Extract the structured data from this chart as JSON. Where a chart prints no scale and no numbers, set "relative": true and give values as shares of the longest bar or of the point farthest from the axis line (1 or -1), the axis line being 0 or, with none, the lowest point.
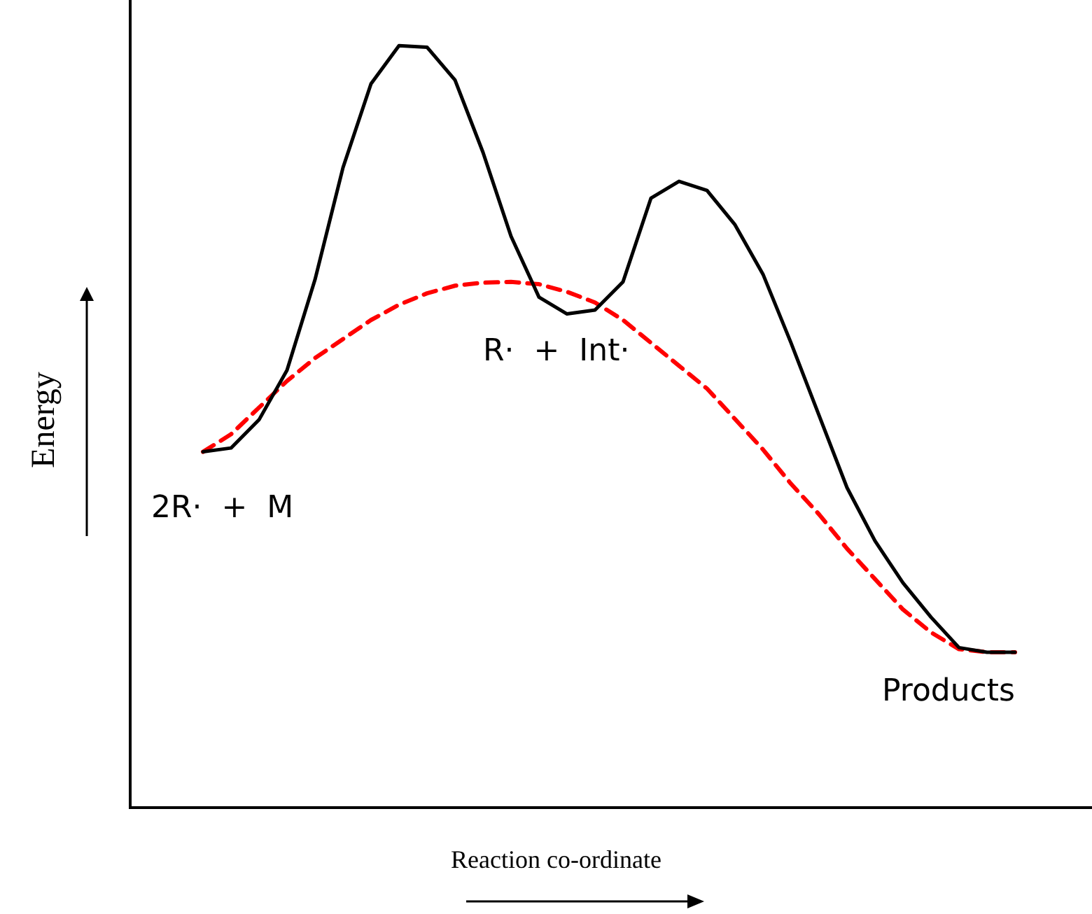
{
  "chart_data": {
    "type": "line",
    "relative": true,
    "xlabel": "Reaction co-ordinate",
    "ylabel": "Energy",
    "marker": "none",
    "categories": [
      null,
      null,
      null,
      null,
      null,
      null,
      null,
      null,
      null,
      null,
      null,
      null,
      null,
      null,
      null,
      null,
      null,
      null,
      null,
      null,
      null,
      null,
      null,
      null,
      null,
      null,
      null,
      null,
      null,
      null
    ],
    "series": [
      {
        "color": "#000000",
        "line_style": "solid",
        "values": [
          0.467,
          0.472,
          0.509,
          0.574,
          0.693,
          0.84,
          0.95,
          1,
          0.998,
          0.955,
          0.86,
          0.75,
          0.67,
          0.648,
          0.653,
          0.69,
          0.8,
          0.822,
          0.81,
          0.765,
          0.7,
          0.61,
          0.515,
          0.42,
          0.35,
          0.295,
          0.25,
          0.21,
          0.204,
          0.204
        ]
      },
      {
        "color": "#ff0000",
        "line_style": "dashed",
        "values": [
          0.467,
          0.49,
          0.525,
          0.56,
          0.59,
          0.615,
          0.64,
          0.66,
          0.675,
          0.685,
          0.689,
          0.69,
          0.687,
          0.677,
          0.663,
          0.64,
          0.61,
          0.58,
          0.55,
          0.51,
          0.47,
          0.425,
          0.385,
          0.34,
          0.3,
          0.26,
          0.23,
          0.208,
          0.204,
          0.204
        ]
      }
    ],
    "annotations": [
      "2R·  +  M",
      "R·  +  Int·",
      "Products"
    ]
  }
}
